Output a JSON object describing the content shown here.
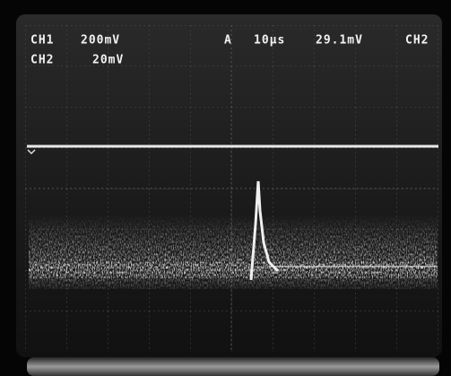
{
  "readout": {
    "row1": {
      "channel": "CH1",
      "scale": "200mV",
      "trigger_mode": "A",
      "timebase": "10µs",
      "trigger_level": "29.1mV",
      "trigger_source": "CH2"
    },
    "row2": {
      "channel": "CH2",
      "scale": "20mV"
    }
  }
}
